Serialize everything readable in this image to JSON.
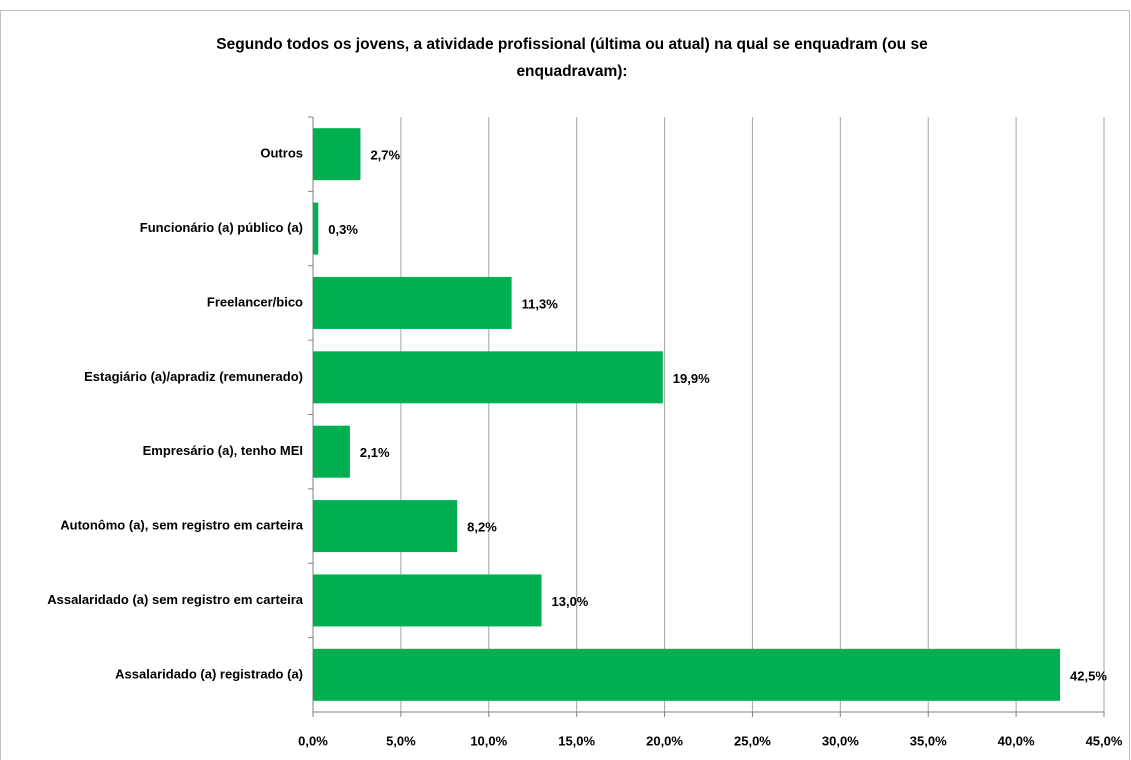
{
  "chart_data": {
    "type": "bar",
    "orientation": "horizontal",
    "title": [
      "Segundo todos os jovens, a atividade profissional (última ou atual) na qual se enquadram (ou se",
      "enquadravam):"
    ],
    "categories": [
      "Outros",
      "Funcionário (a) público (a)",
      "Freelancer/bico",
      "Estagiário (a)/apradiz (remunerado)",
      "Empresário (a), tenho MEI",
      "Autonômo (a), sem registro em carteira",
      "Assalaridado (a) sem registro em carteira",
      "Assalaridado (a) registrado (a)"
    ],
    "values": [
      2.7,
      0.3,
      11.3,
      19.9,
      2.1,
      8.2,
      13.0,
      42.5
    ],
    "value_labels": [
      "2,7%",
      "0,3%",
      "11,3%",
      "19,9%",
      "2,1%",
      "8,2%",
      "13,0%",
      "42,5%"
    ],
    "color": "#00b050",
    "xlim": [
      0,
      45
    ],
    "xticks": [
      {
        "value": 0,
        "label": "0,0%"
      },
      {
        "value": 5,
        "label": "5,0%"
      },
      {
        "value": 10,
        "label": "10,0%"
      },
      {
        "value": 15,
        "label": "15,0%"
      },
      {
        "value": 20,
        "label": "20,0%"
      },
      {
        "value": 25,
        "label": "25,0%"
      },
      {
        "value": 30,
        "label": "30,0%"
      },
      {
        "value": 35,
        "label": "35,0%"
      },
      {
        "value": 40,
        "label": "40,0%"
      },
      {
        "value": 45,
        "label": "45,0%"
      }
    ],
    "grid": true
  }
}
